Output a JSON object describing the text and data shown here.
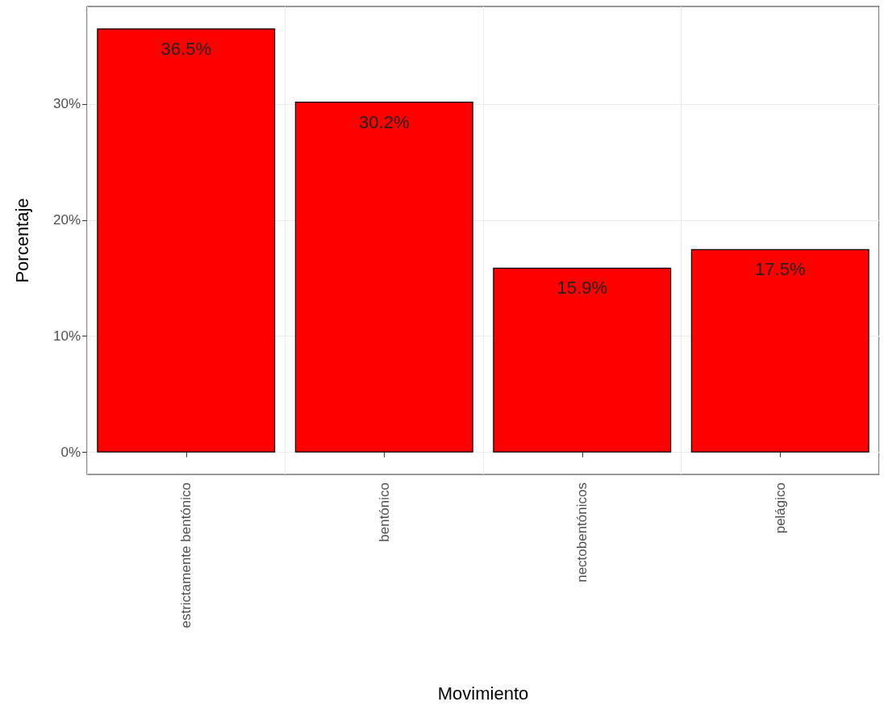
{
  "chart_data": {
    "type": "bar",
    "xlabel": "Movimiento",
    "ylabel": "Porcentaje",
    "categories": [
      "estrictamente bentónico",
      "bentónico",
      "nectobentónicos",
      "pelágico"
    ],
    "values": [
      36.5,
      30.2,
      15.9,
      17.5
    ],
    "value_labels": [
      "36.5%",
      "30.2%",
      "15.9%",
      "17.5%"
    ],
    "color": "#ff0000",
    "ylim": [
      -1.9,
      38.4
    ],
    "yticks": [
      {
        "value": 0,
        "label": "0%"
      },
      {
        "value": 10,
        "label": "10%"
      },
      {
        "value": 20,
        "label": "20%"
      },
      {
        "value": 30,
        "label": "30%"
      }
    ],
    "grid": true
  }
}
